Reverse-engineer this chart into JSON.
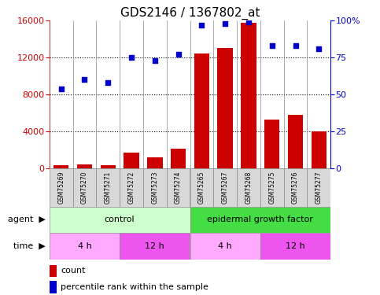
{
  "title": "GDS2146 / 1367802_at",
  "samples": [
    "GSM75269",
    "GSM75270",
    "GSM75271",
    "GSM75272",
    "GSM75273",
    "GSM75274",
    "GSM75265",
    "GSM75267",
    "GSM75268",
    "GSM75275",
    "GSM75276",
    "GSM75277"
  ],
  "counts": [
    300,
    400,
    350,
    1700,
    1200,
    2100,
    12400,
    13000,
    15800,
    5300,
    5800,
    4000
  ],
  "percentile": [
    54,
    60,
    58,
    75,
    73,
    77,
    97,
    98,
    99,
    83,
    83,
    81
  ],
  "ylim_left": [
    0,
    16000
  ],
  "ylim_right": [
    0,
    100
  ],
  "yticks_left": [
    0,
    4000,
    8000,
    12000,
    16000
  ],
  "yticks_right": [
    0,
    25,
    50,
    75,
    100
  ],
  "bar_color": "#cc0000",
  "dot_color": "#0000cc",
  "control_color_light": "#ccffcc",
  "control_color_dark": "#44dd44",
  "time_color_light": "#ffaaff",
  "time_color_dark": "#ee55ee",
  "agent_control_label": "control",
  "agent_egf_label": "epidermal growth factor",
  "time_labels": [
    "4 h",
    "12 h",
    "4 h",
    "12 h"
  ],
  "legend_count": "count",
  "legend_percentile": "percentile rank within the sample",
  "title_fontsize": 11,
  "tick_fontsize": 8,
  "label_fontsize": 8,
  "sample_fontsize": 5.5
}
